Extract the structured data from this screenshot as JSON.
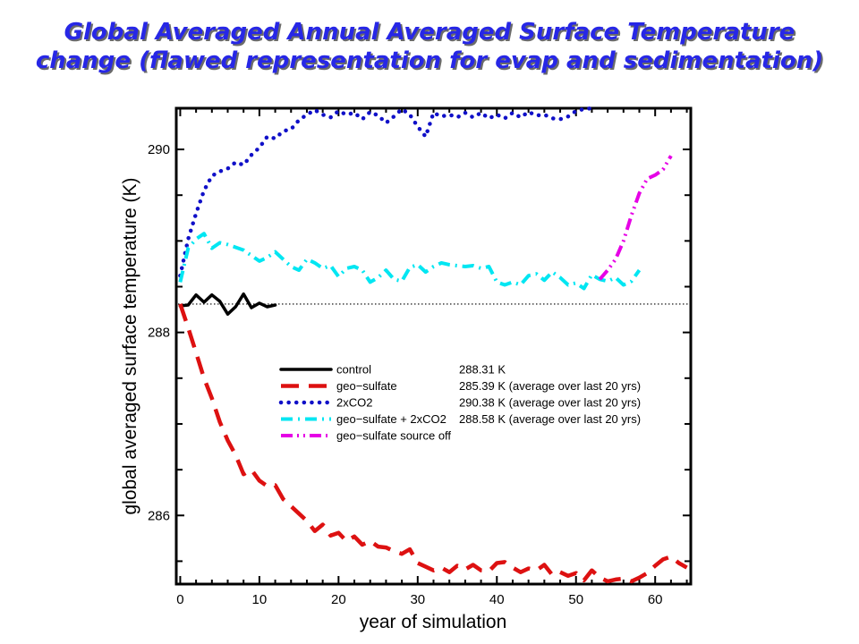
{
  "page": {
    "title_lines": [
      "Global Averaged Annual Averaged Surface Temperature",
      "change (flawed representation for evap and sedimentation)"
    ]
  },
  "chart_data": {
    "type": "line",
    "xlabel": "year of simulation",
    "ylabel": "global averaged surface temperature (K)",
    "xlim": [
      -0.5,
      64.5
    ],
    "ylim": [
      285.25,
      290.45
    ],
    "x_ticks": [
      0,
      10,
      20,
      30,
      40,
      50,
      60
    ],
    "y_ticks": [
      286,
      288,
      290
    ],
    "reference_line": {
      "y": 288.31,
      "style": "dotted",
      "color": "#000000"
    },
    "legend_position": "lower-right",
    "series": [
      {
        "name": "control",
        "stat": "288.31 K",
        "color": "#000000",
        "style": "solid",
        "x": [
          0,
          1,
          2,
          3,
          4,
          5,
          6,
          7,
          8,
          9,
          10,
          11,
          12
        ],
        "y": [
          288.29,
          288.3,
          288.41,
          288.33,
          288.41,
          288.34,
          288.2,
          288.28,
          288.42,
          288.27,
          288.32,
          288.28,
          288.3
        ]
      },
      {
        "name": "geo−sulfate",
        "stat": "285.39 K (average over last 20 yrs)",
        "color": "#dd1111",
        "style": "dash",
        "x": [
          0,
          1,
          2,
          3,
          4,
          5,
          6,
          7,
          8,
          9,
          10,
          11,
          12,
          13,
          14,
          15,
          16,
          17,
          18,
          19,
          20,
          21,
          22,
          23,
          24,
          25,
          26,
          27,
          28,
          29,
          30,
          31,
          32,
          33,
          34,
          35,
          36,
          37,
          38,
          39,
          40,
          41,
          42,
          43,
          44,
          45,
          46,
          47,
          48,
          49,
          50,
          51,
          52,
          53,
          54,
          55,
          56,
          57,
          58,
          59,
          60,
          61,
          62,
          63,
          64
        ],
        "y": [
          288.31,
          288.05,
          287.78,
          287.5,
          287.28,
          287.02,
          286.82,
          286.66,
          286.45,
          286.5,
          286.38,
          286.32,
          286.33,
          286.18,
          286.1,
          286.02,
          285.94,
          285.83,
          285.9,
          285.78,
          285.81,
          285.72,
          285.77,
          285.68,
          285.72,
          285.66,
          285.65,
          285.61,
          285.58,
          285.63,
          285.48,
          285.44,
          285.4,
          285.43,
          285.38,
          285.45,
          285.41,
          285.46,
          285.4,
          285.39,
          285.48,
          285.49,
          285.43,
          285.38,
          285.42,
          285.4,
          285.46,
          285.35,
          285.38,
          285.34,
          285.37,
          285.29,
          285.4,
          285.32,
          285.28,
          285.3,
          285.31,
          285.28,
          285.32,
          285.37,
          285.45,
          285.52,
          285.55,
          285.48,
          285.43
        ]
      },
      {
        "name": "2xCO2",
        "stat": "290.38 K (average over last 20 yrs)",
        "color": "#1010c8",
        "style": "dot",
        "x": [
          0,
          1,
          2,
          3,
          4,
          5,
          6,
          7,
          8,
          9,
          10,
          11,
          12,
          13,
          14,
          15,
          16,
          17,
          18,
          19,
          20,
          21,
          22,
          23,
          24,
          25,
          26,
          27,
          28,
          29,
          30,
          31,
          32,
          33,
          34,
          35,
          36,
          37,
          38,
          39,
          40,
          41,
          42,
          43,
          44,
          45,
          46,
          47,
          48,
          49,
          50,
          51,
          52
        ],
        "y": [
          288.62,
          289.02,
          289.3,
          289.55,
          289.71,
          289.76,
          289.79,
          289.86,
          289.83,
          289.94,
          290.02,
          290.14,
          290.12,
          290.2,
          290.22,
          290.32,
          290.38,
          290.43,
          290.38,
          290.35,
          290.42,
          290.38,
          290.4,
          290.33,
          290.41,
          290.37,
          290.29,
          290.36,
          290.44,
          290.38,
          290.25,
          290.14,
          290.4,
          290.36,
          290.38,
          290.35,
          290.4,
          290.35,
          290.4,
          290.34,
          290.38,
          290.34,
          290.4,
          290.35,
          290.41,
          290.37,
          290.38,
          290.34,
          290.33,
          290.36,
          290.42,
          290.44,
          290.45
        ]
      },
      {
        "name": "geo−sulfate + 2xCO2",
        "stat": "288.58 K (average over last 20 yrs)",
        "color": "#00e6f2",
        "style": "dash-dot",
        "x": [
          0,
          1,
          2,
          3,
          4,
          5,
          6,
          7,
          8,
          9,
          10,
          11,
          12,
          13,
          14,
          15,
          16,
          17,
          18,
          19,
          20,
          21,
          22,
          23,
          24,
          25,
          26,
          27,
          28,
          29,
          30,
          31,
          32,
          33,
          34,
          35,
          36,
          37,
          38,
          39,
          40,
          41,
          42,
          43,
          44,
          45,
          46,
          47,
          48,
          49,
          50,
          51,
          52,
          53,
          54,
          55,
          56,
          57,
          58
        ],
        "y": [
          288.55,
          288.92,
          289.02,
          289.08,
          288.92,
          288.98,
          288.96,
          288.93,
          288.9,
          288.84,
          288.78,
          288.82,
          288.88,
          288.8,
          288.72,
          288.68,
          288.8,
          288.76,
          288.7,
          288.73,
          288.61,
          288.7,
          288.72,
          288.68,
          288.55,
          288.6,
          288.68,
          288.58,
          288.56,
          288.71,
          288.74,
          288.66,
          288.72,
          288.76,
          288.74,
          288.73,
          288.72,
          288.73,
          288.7,
          288.72,
          288.55,
          288.52,
          288.55,
          288.52,
          288.62,
          288.64,
          288.57,
          288.66,
          288.6,
          288.52,
          288.54,
          288.48,
          288.63,
          288.58,
          288.56,
          288.6,
          288.52,
          288.56,
          288.68
        ]
      },
      {
        "name": "geo−sulfate source off",
        "stat": "",
        "color": "#e600e6",
        "style": "dash-dot-dot",
        "x": [
          53,
          54,
          55,
          56,
          57,
          58,
          59,
          60,
          61,
          62
        ],
        "y": [
          288.58,
          288.68,
          288.8,
          289.0,
          289.28,
          289.52,
          289.68,
          289.72,
          289.78,
          289.93
        ]
      }
    ]
  }
}
